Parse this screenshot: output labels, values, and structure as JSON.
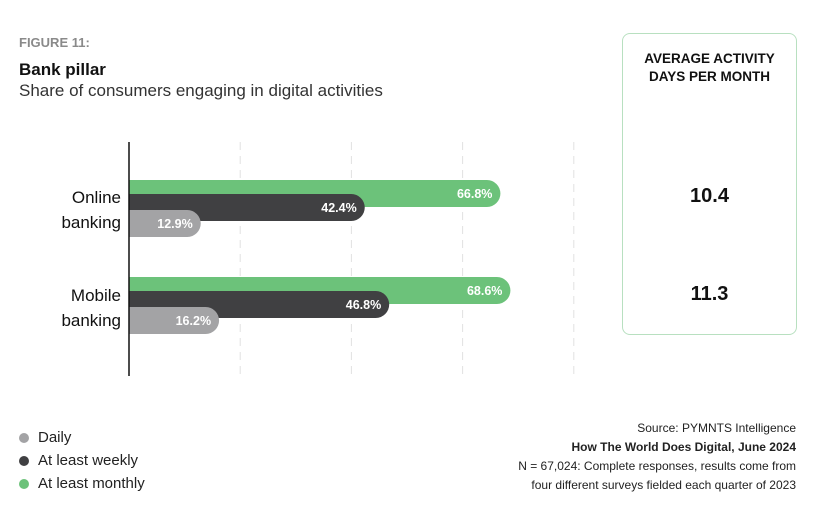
{
  "header": {
    "figure_label": "FIGURE 11:",
    "title": "Bank pillar",
    "subtitle": "Share of consumers engaging in digital activities"
  },
  "avg_box": {
    "title_line1": "AVERAGE ACTIVITY",
    "title_line2": "DAYS PER MONTH",
    "values": [
      "10.4",
      "11.3"
    ]
  },
  "chart_data": {
    "type": "bar",
    "orientation": "horizontal",
    "categories": [
      [
        "Online",
        "banking"
      ],
      [
        "Mobile",
        "banking"
      ]
    ],
    "series": [
      {
        "name": "At least monthly",
        "color": "#6cc27a",
        "values": [
          66.8,
          68.6
        ],
        "labels": [
          "66.8%",
          "68.6%"
        ]
      },
      {
        "name": "At least weekly",
        "color": "#404042",
        "values": [
          42.4,
          46.8
        ],
        "labels": [
          "42.4%",
          "46.8%"
        ]
      },
      {
        "name": "Daily",
        "color": "#a3a3a5",
        "values": [
          12.9,
          16.2
        ],
        "labels": [
          "12.9%",
          "16.2%"
        ]
      }
    ],
    "xlim": [
      0,
      80
    ],
    "gridlines": [
      20,
      40,
      60,
      80
    ],
    "grid": true
  },
  "legend": [
    {
      "label": "Daily",
      "color": "#a3a3a5"
    },
    {
      "label": "At least weekly",
      "color": "#404042"
    },
    {
      "label": "At least monthly",
      "color": "#6cc27a"
    }
  ],
  "source": {
    "line1": "Source: PYMNTS Intelligence",
    "line2": "How The World Does Digital, June 2024",
    "line3": "N = 67,024: Complete responses, results come from",
    "line4": "four different surveys fielded each quarter of 2023"
  }
}
